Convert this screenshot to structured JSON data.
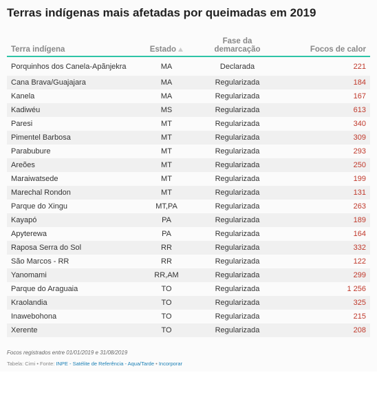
{
  "header": {
    "title": "Terras indígenas mais afetadas por queimadas em 2019"
  },
  "table": {
    "columns": [
      "Terra indígena",
      "Estado",
      "Fase da demarcação",
      "Focos de calor"
    ],
    "rows": [
      [
        "Porquinhos dos Canela-Apãnjekra",
        "MA",
        "Declarada",
        "221"
      ],
      [
        "Cana Brava/Guajajara",
        "MA",
        "Regularizada",
        "184"
      ],
      [
        "Kanela",
        "MA",
        "Regularizada",
        "167"
      ],
      [
        "Kadiwéu",
        "MS",
        "Regularizada",
        "613"
      ],
      [
        "Paresi",
        "MT",
        "Regularizada",
        "340"
      ],
      [
        "Pimentel Barbosa",
        "MT",
        "Regularizada",
        "309"
      ],
      [
        "Parabubure",
        "MT",
        "Regularizada",
        "293"
      ],
      [
        "Areões",
        "MT",
        "Regularizada",
        "250"
      ],
      [
        "Maraiwatsede",
        "MT",
        "Regularizada",
        "199"
      ],
      [
        "Marechal Rondon",
        "MT",
        "Regularizada",
        "131"
      ],
      [
        "Parque do Xingu",
        "MT,PA",
        "Regularizada",
        "263"
      ],
      [
        "Kayapó",
        "PA",
        "Regularizada",
        "189"
      ],
      [
        "Apyterewa",
        "PA",
        "Regularizada",
        "164"
      ],
      [
        "Raposa Serra do Sol",
        "RR",
        "Regularizada",
        "332"
      ],
      [
        "São Marcos - RR",
        "RR",
        "Regularizada",
        "122"
      ],
      [
        "Yanomami",
        "RR,AM",
        "Regularizada",
        "299"
      ],
      [
        "Parque do Araguaia",
        "TO",
        "Regularizada",
        "1 256"
      ],
      [
        "Kraolandia",
        "TO",
        "Regularizada",
        "325"
      ],
      [
        "Inawebohona",
        "TO",
        "Regularizada",
        "215"
      ],
      [
        "Xerente",
        "TO",
        "Regularizada",
        "208"
      ]
    ]
  },
  "footer": {
    "note": "Focos registrados entre 01/01/2019 e 31/08/2019",
    "source": "Tabela: Cimi • Fonte:",
    "source_link": "INPE - Satélite de Referência - Aqua/Tarde",
    "separator": "•",
    "embed": "Incorporar"
  }
}
